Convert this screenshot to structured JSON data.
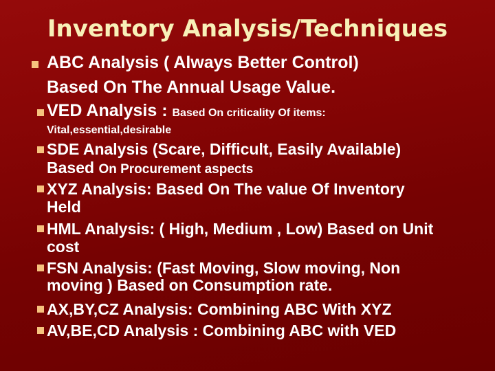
{
  "title": "Inventory Analysis/Techniques",
  "bullet_color": "#f6c27e",
  "items": [
    {
      "lines": [
        "ABC Analysis ( Always Better Control)",
        "Based On The Annual Usage Value."
      ]
    },
    {
      "main": "VED Analysis : ",
      "detail": "Based On criticality Of items:",
      "sub": "Vital,essential,desirable"
    },
    {
      "lines": [
        "SDE  Analysis  (Scare, Difficult, Easily Available)"
      ],
      "l2a": "Based ",
      "l2b": "On Procurement aspects"
    },
    {
      "lines": [
        "XYZ Analysis: Based On The value Of Inventory",
        "Held"
      ]
    },
    {
      "lines": [
        "HML Analysis: ( High, Medium , Low) Based on Unit",
        "cost"
      ]
    },
    {
      "lines": [
        "FSN Analysis: (Fast Moving, Slow moving, Non",
        "moving ) Based on Consumption rate."
      ]
    },
    {
      "lines": [
        "AX,BY,CZ Analysis: Combining ABC With XYZ"
      ]
    },
    {
      "lines": [
        "AV,BE,CD Analysis : Combining ABC with VED"
      ]
    }
  ]
}
